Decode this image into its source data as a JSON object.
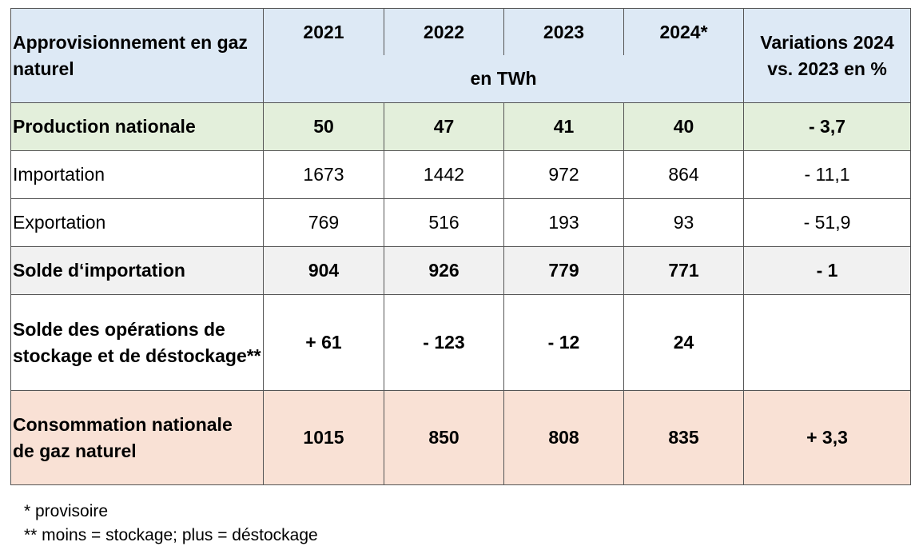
{
  "table": {
    "header": {
      "label": "Approvisionnement en gaz naturel",
      "years": [
        "2021",
        "2022",
        "2023",
        "2024*"
      ],
      "unit": "en TWh",
      "variation": "Variations 2024 vs. 2023 en %"
    },
    "rows": [
      {
        "label": "Production nationale",
        "values": [
          "50",
          "47",
          "41",
          "40"
        ],
        "variation": "- 3,7"
      },
      {
        "label": "Importation",
        "values": [
          "1673",
          "1442",
          "972",
          "864"
        ],
        "variation": "- 11,1"
      },
      {
        "label": "Exportation",
        "values": [
          "769",
          "516",
          "193",
          "93"
        ],
        "variation": "- 51,9"
      },
      {
        "label": "Solde d‘importation",
        "values": [
          "904",
          "926",
          "779",
          "771"
        ],
        "variation": "- 1"
      },
      {
        "label": "Solde des opérations de stockage et de déstockage**",
        "values": [
          "+ 61",
          "- 123",
          "- 12",
          "24"
        ]
      },
      {
        "label": "Consommation nationale de gaz naturel",
        "values": [
          "1015",
          "850",
          "808",
          "835"
        ],
        "variation": "+ 3,3"
      }
    ]
  },
  "footnotes": [
    "* provisoire",
    "** moins = stockage; plus = déstockage"
  ]
}
